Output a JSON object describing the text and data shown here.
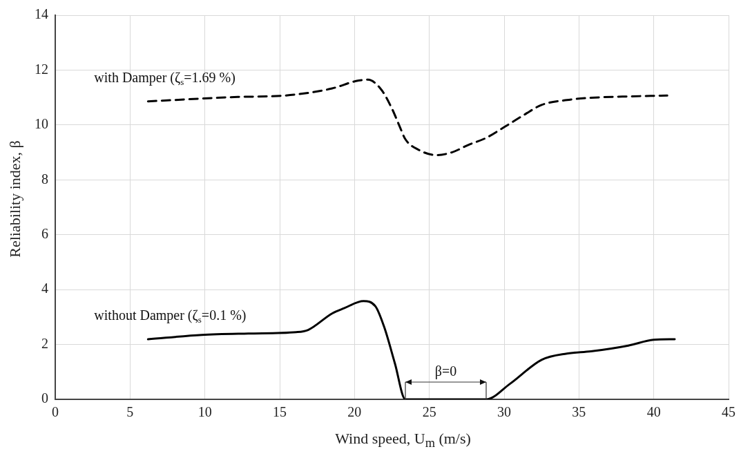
{
  "chart_data": {
    "type": "line",
    "xlabel": "Wind speed, U$_{m}$ (m/s)",
    "ylabel": "Reliability index, β",
    "xlim": [
      0,
      45
    ],
    "xticks": [
      0,
      5,
      10,
      15,
      20,
      25,
      30,
      35,
      40,
      45
    ],
    "ylim": [
      0,
      14
    ],
    "yticks": [
      0,
      2,
      4,
      6,
      8,
      10,
      12,
      14
    ],
    "grid": true,
    "legend": false,
    "marker": "none",
    "series": [
      {
        "name": "with Damper (ζ$_{s}$=1.69 %)",
        "color": "#000000",
        "line_style": "dashed",
        "x": [
          6.2,
          12.2,
          15.3,
          18.5,
          20.1,
          20.9,
          21.8,
          22.5,
          23.0,
          23.4,
          24.3,
          25.5,
          26.5,
          27.6,
          28.8,
          30.0,
          31.4,
          32.5,
          34.2,
          35.8,
          38.3,
          40.9
        ],
        "values": [
          10.86,
          11.02,
          11.07,
          11.33,
          11.6,
          11.65,
          11.28,
          10.6,
          9.97,
          9.48,
          9.09,
          8.9,
          9.0,
          9.27,
          9.53,
          9.92,
          10.39,
          10.73,
          10.91,
          10.99,
          11.04,
          11.07
        ]
      },
      {
        "name": "without Damper (ζ$_{s}$=0.1 %)",
        "color": "#000000",
        "line_style": "solid",
        "x": [
          6.2,
          9.8,
          12.9,
          16.1,
          16.9,
          18.5,
          19.3,
          20.6,
          21.4,
          22.0,
          22.7,
          23.4,
          26.1,
          28.8,
          30.4,
          32.5,
          34.2,
          35.8,
          38.3,
          40.0,
          41.4
        ],
        "values": [
          2.19,
          2.35,
          2.4,
          2.45,
          2.53,
          3.13,
          3.32,
          3.58,
          3.39,
          2.61,
          1.31,
          0,
          0,
          0,
          0.57,
          1.44,
          1.67,
          1.75,
          1.96,
          2.17,
          2.19
        ]
      }
    ],
    "annotations": [
      "β=0"
    ]
  }
}
